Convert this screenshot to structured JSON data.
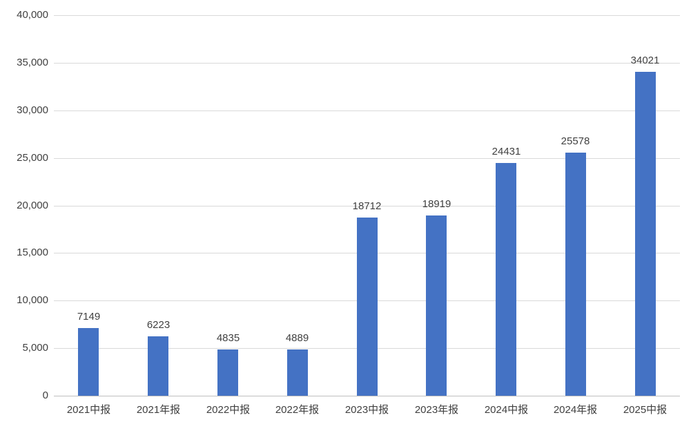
{
  "chart_data": {
    "type": "bar",
    "categories": [
      "2021中报",
      "2021年报",
      "2022中报",
      "2022年报",
      "2023中报",
      "2023年报",
      "2024中报",
      "2024年报",
      "2025中报"
    ],
    "values": [
      7149,
      6223,
      4835,
      4889,
      18712,
      18919,
      24431,
      25578,
      34021
    ],
    "value_labels": [
      "7149",
      "6223",
      "4835",
      "4889",
      "18712",
      "18919",
      "24431",
      "25578",
      "34021"
    ],
    "title": "",
    "xlabel": "",
    "ylabel": "",
    "ylim": [
      0,
      40000
    ],
    "ytick_step": 5000,
    "ytick_labels": [
      "0",
      "5,000",
      "10,000",
      "15,000",
      "20,000",
      "25,000",
      "30,000",
      "35,000",
      "40,000"
    ],
    "grid": true,
    "legend": "none",
    "bar_color": "#4472C4",
    "text_color": "#404040",
    "grid_color": "#D9D9D9",
    "axis_color": "#BFBFBF",
    "background_color": "#FFFFFF"
  }
}
